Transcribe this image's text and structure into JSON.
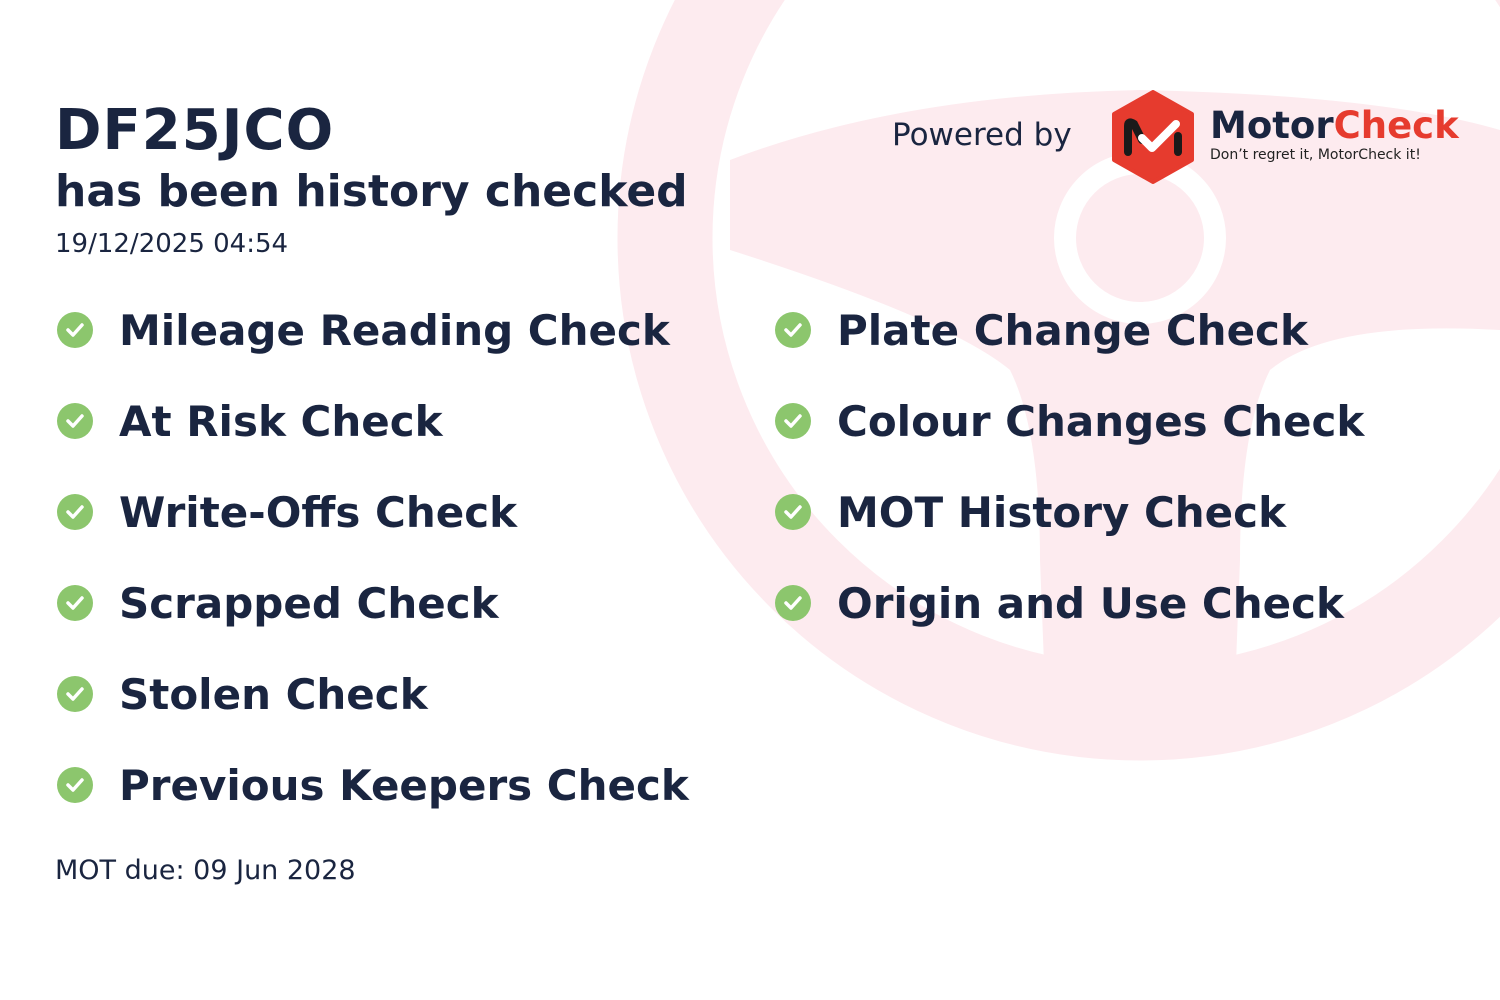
{
  "header": {
    "registration": "DF25JCO",
    "subtitle": "has been history checked",
    "timestamp": "19/12/2025 04:54"
  },
  "branding": {
    "powered_by": "Powered by",
    "brand_part1": "Motor",
    "brand_part2": "Check",
    "tagline": "Don’t regret it, MotorCheck it!",
    "brand_color": "#e63b2e"
  },
  "checks_left": [
    {
      "label": "Mileage Reading Check",
      "icon": "check-circle-icon"
    },
    {
      "label": "At Risk Check",
      "icon": "check-circle-icon"
    },
    {
      "label": "Write-Offs Check",
      "icon": "check-circle-icon"
    },
    {
      "label": "Scrapped Check",
      "icon": "check-circle-icon"
    },
    {
      "label": "Stolen Check",
      "icon": "check-circle-icon"
    },
    {
      "label": "Previous Keepers Check",
      "icon": "check-circle-icon"
    }
  ],
  "checks_right": [
    {
      "label": "Plate Change Check",
      "icon": "check-circle-icon"
    },
    {
      "label": "Colour Changes Check",
      "icon": "check-circle-icon"
    },
    {
      "label": "MOT History Check",
      "icon": "check-circle-icon"
    },
    {
      "label": "Origin and Use Check",
      "icon": "check-circle-icon"
    }
  ],
  "footer": {
    "mot_due": "MOT due: 09 Jun 2028"
  },
  "colors": {
    "text": "#1a2540",
    "check": "#8cc66d",
    "watermark": "#fdebef"
  }
}
